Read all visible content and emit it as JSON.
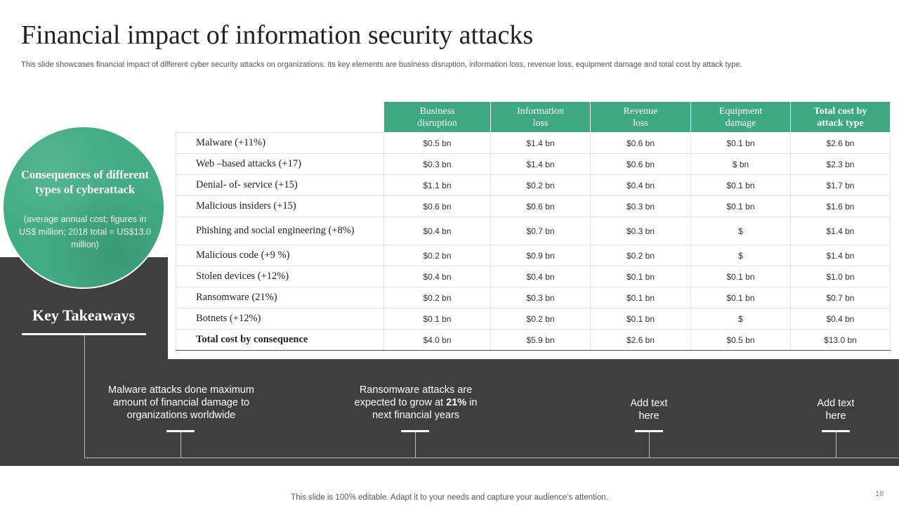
{
  "title": "Financial impact of information security attacks",
  "subtitle": "This slide showcases financial impact of different cyber security attacks on organizations. Its key elements are business disruption, information loss, revenue loss, equipment damage and total cost by attack type.",
  "circle": {
    "title": "Consequences of different types of cyberattack",
    "subtitle": "(average annual cost; figures in US$ million; 2018 total = US$13.0 million)"
  },
  "table": {
    "headers": [
      "Business disruption",
      "Information loss",
      "Revenue loss",
      "Equipment damage",
      "Total cost by attack type"
    ],
    "rows": [
      {
        "label": "Malware (+11%)",
        "values": [
          "$0.5 bn",
          "$1.4 bn",
          "$0.6 bn",
          "$0.1 bn",
          "$2.6 bn"
        ]
      },
      {
        "label": "Web –based attacks (+17)",
        "values": [
          "$0.3 bn",
          "$1.4 bn",
          "$0.6 bn",
          "$ bn",
          "$2.3 bn"
        ]
      },
      {
        "label": "Denial- of- service (+15)",
        "values": [
          "$1.1 bn",
          "$0.2 bn",
          "$0.4 bn",
          "$0.1 bn",
          "$1.7 bn"
        ]
      },
      {
        "label": "Malicious insiders  (+15)",
        "values": [
          "$0.6 bn",
          "$0.6 bn",
          "$0.3 bn",
          "$0.1 bn",
          "$1.6 bn"
        ]
      },
      {
        "label": "Phishing and social  engineering (+8%)",
        "values": [
          "$0.4 bn",
          "$0.7 bn",
          "$0.3 bn",
          "$",
          "$1.4 bn"
        ]
      },
      {
        "label": "Malicious code (+9 %)",
        "values": [
          "$0.2 bn",
          "$0.9 bn",
          "$0.2 bn",
          "$",
          "$1.4 bn"
        ]
      },
      {
        "label": "Stolen devices (+12%)",
        "values": [
          "$0.4 bn",
          "$0.4 bn",
          "$0.1 bn",
          "$0.1 bn",
          "$1.0 bn"
        ]
      },
      {
        "label": "Ransomware (21%)",
        "values": [
          "$0.2 bn",
          "$0.3 bn",
          "$0.1 bn",
          "$0.1 bn",
          "$0.7 bn"
        ]
      },
      {
        "label": "Botnets (+12%)",
        "values": [
          "$0.1 bn",
          "$0.2 bn",
          "$0.1 bn",
          "$",
          "$0.4 bn"
        ]
      },
      {
        "label": "Total cost by consequence",
        "values": [
          "$4.0 bn",
          "$5.9 bn",
          "$2.6 bn",
          "$0.5 bn",
          "$13.0 bn"
        ]
      }
    ]
  },
  "key_takeaways": {
    "title": "Key Takeaways",
    "items": [
      {
        "text": "Malware attacks done maximum amount of financial damage to organizations worldwide"
      },
      {
        "text_before": "Ransomware attacks are expected to grow at ",
        "highlight": "21%",
        "text_after": " in next financial years"
      },
      {
        "text": "Add text here"
      },
      {
        "text": "Add text here"
      }
    ]
  },
  "footer": "This slide is 100% editable. Adapt it to your needs and capture your audience’s attention.",
  "page_number": "16",
  "colors": {
    "accent": "#3ea882",
    "dark": "#3f3f3f"
  }
}
